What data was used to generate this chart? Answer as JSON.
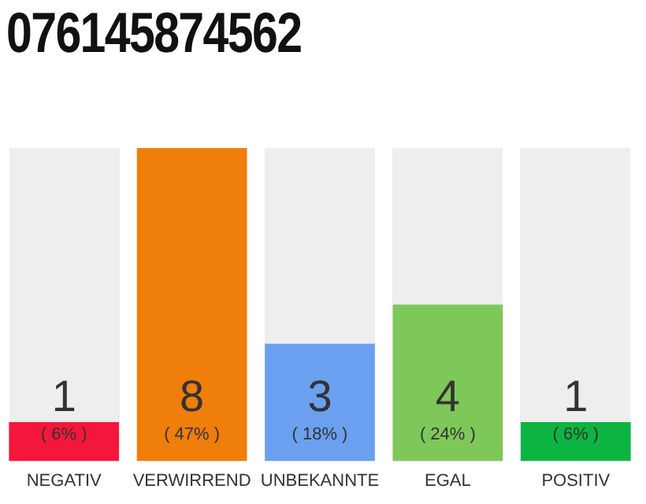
{
  "chart_data": {
    "type": "bar",
    "title": "076145874562",
    "categories": [
      "NEGATIV",
      "VERWIRREND",
      "UNBEKANNTE",
      "EGAL",
      "POSITIV"
    ],
    "values": [
      1,
      8,
      3,
      4,
      1
    ],
    "colors": [
      "#f5163b",
      "#f07e0a",
      "#6aa0ef",
      "#7ec85a",
      "#0cb542"
    ],
    "value_labels": [
      "1\n( 6% )",
      "8\n( 47% )",
      "3\n( 18% )",
      "4\n( 24% )",
      "1\n( 6% )"
    ],
    "grid": false,
    "legend": false
  }
}
